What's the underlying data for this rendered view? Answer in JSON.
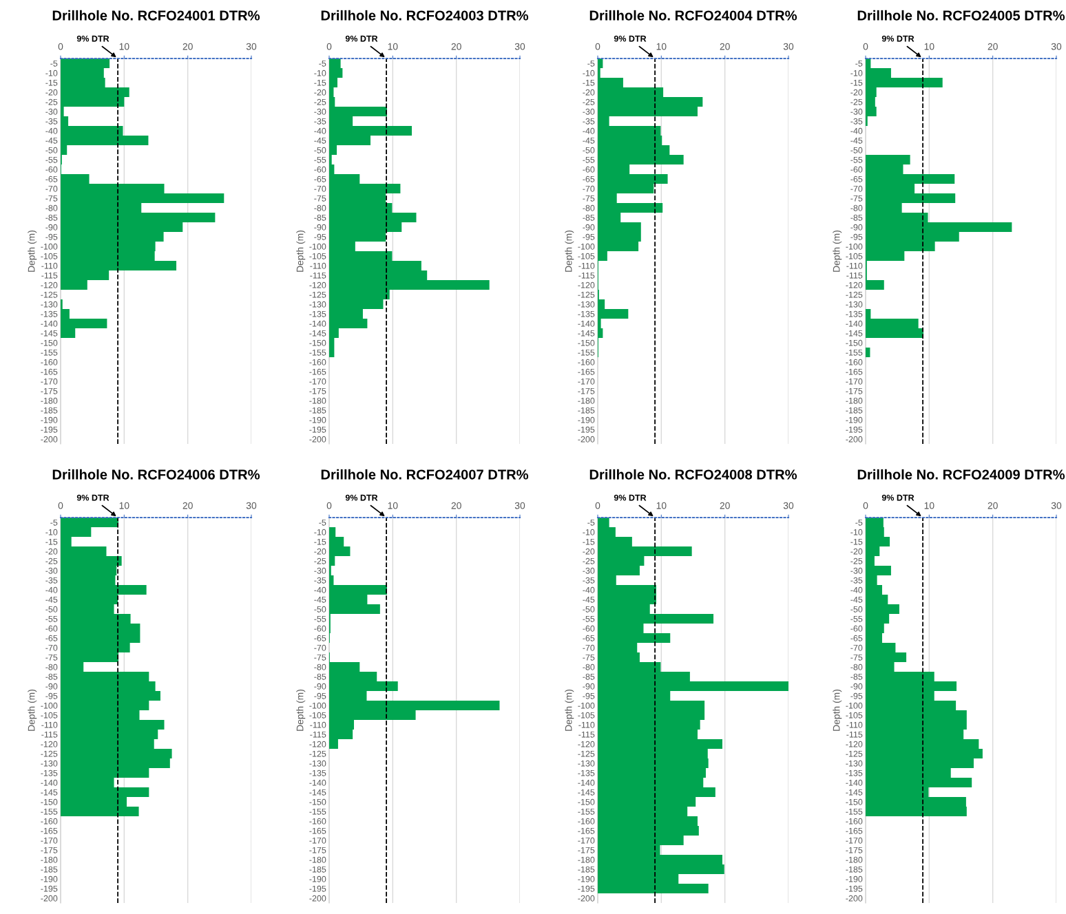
{
  "chart_data": [
    {
      "type": "bar",
      "orientation": "horizontal",
      "title": "Drillhole No. RCFO24001 DTR%",
      "ylabel": "Depth (m)",
      "color": "#00a550",
      "xlim": [
        0,
        30
      ],
      "xticks": [
        0,
        10,
        20,
        30
      ],
      "grid": "x",
      "ref_lines": [
        {
          "axis": "x",
          "value": 9,
          "label": "9% DTR",
          "color": "#000000",
          "line_style": "dashed"
        }
      ],
      "categories": [
        "-5",
        "-10",
        "-15",
        "-20",
        "-25",
        "-30",
        "-35",
        "-40",
        "-45",
        "-50",
        "-55",
        "-60",
        "-65",
        "-70",
        "-75",
        "-80",
        "-85",
        "-90",
        "-95",
        "-100",
        "-105",
        "-110",
        "-115",
        "-120",
        "-125",
        "-130",
        "-135",
        "-140",
        "-145",
        "-150",
        "-155",
        "-160",
        "-165",
        "-170",
        "-175",
        "-180",
        "-185",
        "-190",
        "-195",
        "-200"
      ],
      "values": [
        7.7,
        6.8,
        7.0,
        10.8,
        10.0,
        0.5,
        1.2,
        9.8,
        13.8,
        1.0,
        0.2,
        0.1,
        4.5,
        16.3,
        25.7,
        12.7,
        24.3,
        19.2,
        16.2,
        14.9,
        14.8,
        18.2,
        7.6,
        4.2,
        null,
        0.3,
        1.4,
        7.3,
        2.3,
        null,
        null,
        null,
        null,
        null,
        null,
        null,
        null,
        null,
        null,
        null
      ]
    },
    {
      "type": "bar",
      "orientation": "horizontal",
      "title": "Drillhole No. RCFO24003 DTR%",
      "ylabel": "Depth (m)",
      "color": "#00a550",
      "xlim": [
        0,
        30
      ],
      "xticks": [
        0,
        10,
        20,
        30
      ],
      "grid": "x",
      "ref_lines": [
        {
          "axis": "x",
          "value": 9,
          "label": "9% DTR",
          "color": "#000000",
          "line_style": "dashed"
        }
      ],
      "categories": [
        "-5",
        "-10",
        "-15",
        "-20",
        "-25",
        "-30",
        "-35",
        "-40",
        "-45",
        "-50",
        "-55",
        "-60",
        "-65",
        "-70",
        "-75",
        "-80",
        "-85",
        "-90",
        "-95",
        "-100",
        "-105",
        "-110",
        "-115",
        "-120",
        "-125",
        "-130",
        "-135",
        "-140",
        "-145",
        "-150",
        "-155",
        "-160",
        "-165",
        "-170",
        "-175",
        "-180",
        "-185",
        "-190",
        "-195",
        "-200"
      ],
      "values": [
        1.8,
        2.1,
        1.3,
        0.7,
        0.9,
        9.1,
        3.7,
        13.0,
        6.5,
        1.2,
        0.4,
        0.8,
        4.8,
        11.2,
        8.9,
        9.9,
        13.7,
        11.4,
        8.9,
        4.1,
        9.9,
        14.5,
        15.4,
        25.2,
        9.5,
        8.5,
        5.3,
        6.0,
        1.5,
        0.8,
        0.8,
        null,
        null,
        null,
        null,
        null,
        null,
        null,
        null,
        null
      ]
    },
    {
      "type": "bar",
      "orientation": "horizontal",
      "title": "Drillhole No. RCFO24004 DTR%",
      "ylabel": "Depth (m)",
      "color": "#00a550",
      "xlim": [
        0,
        30
      ],
      "xticks": [
        0,
        10,
        20,
        30
      ],
      "grid": "x",
      "ref_lines": [
        {
          "axis": "x",
          "value": 9,
          "label": "9% DTR",
          "color": "#000000",
          "line_style": "dashed"
        }
      ],
      "categories": [
        "-5",
        "-10",
        "-15",
        "-20",
        "-25",
        "-30",
        "-35",
        "-40",
        "-45",
        "-50",
        "-55",
        "-60",
        "-65",
        "-70",
        "-75",
        "-80",
        "-85",
        "-90",
        "-95",
        "-100",
        "-105",
        "-110",
        "-115",
        "-120",
        "-125",
        "-130",
        "-135",
        "-140",
        "-145",
        "-150",
        "-155",
        "-160",
        "-165",
        "-170",
        "-175",
        "-180",
        "-185",
        "-190",
        "-195",
        "-200"
      ],
      "values": [
        0.8,
        0.4,
        4.0,
        10.3,
        16.5,
        15.7,
        1.8,
        9.9,
        10.1,
        11.3,
        13.5,
        5.0,
        11.0,
        8.8,
        3.0,
        10.2,
        3.6,
        6.8,
        6.8,
        6.4,
        1.5,
        0.1,
        0.1,
        0.1,
        0.2,
        1.1,
        4.8,
        0.5,
        0.8,
        0.1,
        0.1,
        null,
        null,
        null,
        null,
        null,
        null,
        null,
        null,
        null
      ]
    },
    {
      "type": "bar",
      "orientation": "horizontal",
      "title": "Drillhole No. RCFO24005 DTR%",
      "ylabel": "Depth (m)",
      "color": "#00a550",
      "xlim": [
        0,
        30
      ],
      "xticks": [
        0,
        10,
        20,
        30
      ],
      "grid": "x",
      "ref_lines": [
        {
          "axis": "x",
          "value": 9,
          "label": "9% DTR",
          "color": "#000000",
          "line_style": "dashed"
        }
      ],
      "categories": [
        "-5",
        "-10",
        "-15",
        "-20",
        "-25",
        "-30",
        "-35",
        "-40",
        "-45",
        "-50",
        "-55",
        "-60",
        "-65",
        "-70",
        "-75",
        "-80",
        "-85",
        "-90",
        "-95",
        "-100",
        "-105",
        "-110",
        "-115",
        "-120",
        "-125",
        "-130",
        "-135",
        "-140",
        "-145",
        "-150",
        "-155",
        "-160",
        "-165",
        "-170",
        "-175",
        "-180",
        "-185",
        "-190",
        "-195",
        "-200"
      ],
      "values": [
        0.8,
        4.0,
        12.1,
        1.7,
        1.5,
        1.7,
        0.3,
        null,
        null,
        null,
        7.0,
        5.9,
        14.0,
        7.7,
        14.1,
        5.7,
        9.8,
        23.0,
        14.7,
        10.9,
        6.1,
        0.2,
        0.2,
        2.9,
        null,
        null,
        0.8,
        8.3,
        9.1,
        null,
        0.7,
        null,
        null,
        null,
        null,
        null,
        null,
        null,
        null,
        null
      ]
    },
    {
      "type": "bar",
      "orientation": "horizontal",
      "title": "Drillhole No. RCFO24006 DTR%",
      "ylabel": "Depth (m)",
      "color": "#00a550",
      "xlim": [
        0,
        30
      ],
      "xticks": [
        0,
        10,
        20,
        30
      ],
      "grid": "x",
      "ref_lines": [
        {
          "axis": "x",
          "value": 9,
          "label": "9% DTR",
          "color": "#000000",
          "line_style": "dashed"
        }
      ],
      "categories": [
        "-5",
        "-10",
        "-15",
        "-20",
        "-25",
        "-30",
        "-35",
        "-40",
        "-45",
        "-50",
        "-55",
        "-60",
        "-65",
        "-70",
        "-75",
        "-80",
        "-85",
        "-90",
        "-95",
        "-100",
        "-105",
        "-110",
        "-115",
        "-120",
        "-125",
        "-130",
        "-135",
        "-140",
        "-145",
        "-150",
        "-155",
        "-160",
        "-165",
        "-170",
        "-175",
        "-180",
        "-185",
        "-190",
        "-195",
        "-200"
      ],
      "values": [
        9.1,
        4.8,
        1.7,
        7.2,
        9.6,
        8.8,
        8.6,
        13.5,
        9.0,
        8.4,
        11.0,
        12.5,
        12.5,
        10.9,
        9.1,
        3.6,
        13.9,
        14.9,
        15.7,
        13.9,
        12.4,
        16.3,
        15.3,
        14.7,
        17.5,
        17.2,
        13.9,
        8.4,
        13.9,
        10.4,
        12.3,
        null,
        null,
        null,
        null,
        null,
        null,
        null,
        null,
        null
      ]
    },
    {
      "type": "bar",
      "orientation": "horizontal",
      "title": "Drillhole No. RCFO24007 DTR%",
      "ylabel": "Depth (m)",
      "color": "#00a550",
      "xlim": [
        0,
        30
      ],
      "xticks": [
        0,
        10,
        20,
        30
      ],
      "grid": "x",
      "ref_lines": [
        {
          "axis": "x",
          "value": 9,
          "label": "9% DTR",
          "color": "#000000",
          "line_style": "dashed"
        }
      ],
      "categories": [
        "-5",
        "-10",
        "-15",
        "-20",
        "-25",
        "-30",
        "-35",
        "-40",
        "-45",
        "-50",
        "-55",
        "-60",
        "-65",
        "-70",
        "-75",
        "-80",
        "-85",
        "-90",
        "-95",
        "-100",
        "-105",
        "-110",
        "-115",
        "-120",
        "-125",
        "-130",
        "-135",
        "-140",
        "-145",
        "-150",
        "-155",
        "-160",
        "-165",
        "-170",
        "-175",
        "-180",
        "-185",
        "-190",
        "-195",
        "-200"
      ],
      "values": [
        null,
        1.0,
        2.3,
        3.3,
        0.9,
        0.3,
        0.7,
        9.1,
        6.0,
        8.0,
        0.2,
        0.2,
        0.1,
        null,
        0.1,
        4.8,
        7.5,
        10.8,
        5.9,
        26.8,
        13.6,
        3.9,
        3.7,
        1.4,
        null,
        null,
        null,
        null,
        null,
        null,
        null,
        null,
        null,
        null,
        null,
        null,
        null,
        null,
        null,
        null
      ]
    },
    {
      "type": "bar",
      "orientation": "horizontal",
      "title": "Drillhole No. RCFO24008 DTR%",
      "ylabel": "Depth (m)",
      "color": "#00a550",
      "xlim": [
        0,
        30
      ],
      "xticks": [
        0,
        10,
        20,
        30
      ],
      "grid": "x",
      "ref_lines": [
        {
          "axis": "x",
          "value": 9,
          "label": "9% DTR",
          "color": "#000000",
          "line_style": "dashed"
        }
      ],
      "categories": [
        "-5",
        "-10",
        "-15",
        "-20",
        "-25",
        "-30",
        "-35",
        "-40",
        "-45",
        "-50",
        "-55",
        "-60",
        "-65",
        "-70",
        "-75",
        "-80",
        "-85",
        "-90",
        "-95",
        "-100",
        "-105",
        "-110",
        "-115",
        "-120",
        "-125",
        "-130",
        "-135",
        "-140",
        "-145",
        "-150",
        "-155",
        "-160",
        "-165",
        "-170",
        "-175",
        "-180",
        "-185",
        "-190",
        "-195",
        "-200"
      ],
      "values": [
        1.8,
        2.8,
        5.4,
        14.8,
        7.3,
        6.6,
        2.9,
        9.2,
        9.2,
        8.2,
        18.2,
        7.2,
        11.4,
        6.2,
        6.6,
        9.9,
        14.5,
        30,
        11.4,
        16.8,
        16.8,
        16.1,
        15.7,
        19.6,
        17.3,
        17.4,
        17.0,
        16.6,
        18.5,
        15.4,
        14.1,
        15.7,
        15.9,
        13.5,
        9.8,
        19.6,
        19.9,
        12.7,
        17.4,
        null
      ]
    },
    {
      "type": "bar",
      "orientation": "horizontal",
      "title": "Drillhole No. RCFO24009 DTR%",
      "ylabel": "Depth (m)",
      "color": "#00a550",
      "xlim": [
        0,
        30
      ],
      "xticks": [
        0,
        10,
        20,
        30
      ],
      "grid": "x",
      "ref_lines": [
        {
          "axis": "x",
          "value": 9,
          "label": "9% DTR",
          "color": "#000000",
          "line_style": "dashed"
        }
      ],
      "categories": [
        "-5",
        "-10",
        "-15",
        "-20",
        "-25",
        "-30",
        "-35",
        "-40",
        "-45",
        "-50",
        "-55",
        "-60",
        "-65",
        "-70",
        "-75",
        "-80",
        "-85",
        "-90",
        "-95",
        "-100",
        "-105",
        "-110",
        "-115",
        "-120",
        "-125",
        "-130",
        "-135",
        "-140",
        "-145",
        "-150",
        "-155",
        "-160",
        "-165",
        "-170",
        "-175",
        "-180",
        "-185",
        "-190",
        "-195",
        "-200"
      ],
      "values": [
        2.8,
        2.9,
        3.8,
        2.2,
        1.4,
        4.0,
        1.8,
        2.6,
        3.5,
        5.3,
        3.7,
        2.9,
        2.6,
        4.7,
        6.4,
        4.5,
        10.8,
        14.3,
        10.8,
        14.2,
        15.9,
        15.9,
        15.4,
        17.8,
        18.4,
        17.0,
        13.4,
        16.7,
        9.9,
        15.8,
        15.9,
        null,
        null,
        null,
        null,
        null,
        null,
        null,
        null,
        null
      ]
    }
  ]
}
